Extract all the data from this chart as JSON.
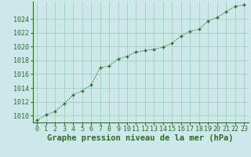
{
  "x": [
    0,
    1,
    2,
    3,
    4,
    5,
    6,
    7,
    8,
    9,
    10,
    11,
    12,
    13,
    14,
    15,
    16,
    17,
    18,
    19,
    20,
    21,
    22,
    23
  ],
  "y": [
    1009.3,
    1010.1,
    1010.6,
    1011.7,
    1013.0,
    1013.6,
    1014.4,
    1016.9,
    1017.2,
    1018.2,
    1018.6,
    1019.2,
    1019.4,
    1019.6,
    1019.9,
    1020.5,
    1021.5,
    1022.2,
    1022.5,
    1023.7,
    1024.2,
    1025.0,
    1025.8,
    1026.0
  ],
  "line_color": "#2d6a2d",
  "marker": "+",
  "marker_size": 3.5,
  "marker_linewidth": 1.0,
  "bg_color": "#cce8e8",
  "grid_color": "#99ccbb",
  "ylabel_ticks": [
    1010,
    1012,
    1014,
    1016,
    1018,
    1020,
    1022,
    1024
  ],
  "ylim": [
    1009.0,
    1026.5
  ],
  "xlim": [
    -0.5,
    23.5
  ],
  "xlabel": "Graphe pression niveau de la mer (hPa)",
  "xlabel_fontsize": 7.5,
  "tick_fontsize": 6,
  "fig_bg_color": "#cce8e8",
  "line_width": 0.7,
  "spine_color": "#2d6a2d"
}
